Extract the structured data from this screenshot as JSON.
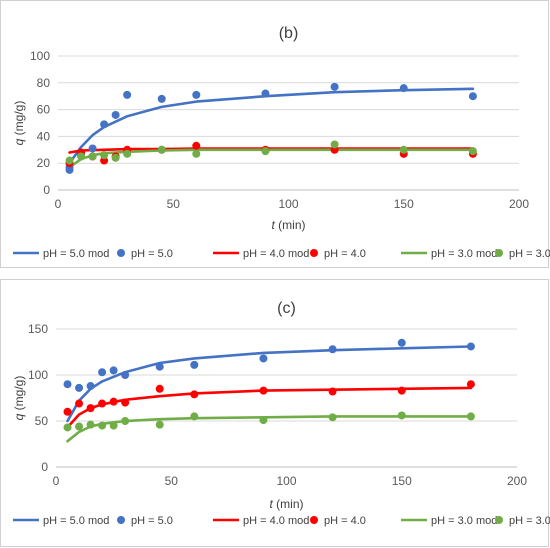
{
  "chart_data": [
    {
      "type": "scatter",
      "title": "(b)",
      "xlabel_var": "t",
      "xlabel_unit": " (min)",
      "ylabel_var": "q",
      "ylabel_unit": " (mg/g)",
      "xlim": [
        0,
        200
      ],
      "ylim": [
        0,
        100
      ],
      "xticks": [
        0,
        50,
        100,
        150,
        200
      ],
      "yticks": [
        0,
        20,
        40,
        60,
        80,
        100
      ],
      "grid": "horizontal",
      "legend_position": "bottom",
      "legend": [
        "pH = 5.0 mod",
        "pH = 5.0",
        "pH = 4.0 mod",
        "pH = 4.0",
        "pH = 3.0 mod",
        "pH = 3.0"
      ],
      "series": [
        {
          "name": "pH = 5.0 mod",
          "kind": "line",
          "color": "#4472C4",
          "x": [
            5,
            10,
            15,
            20,
            30,
            45,
            60,
            90,
            120,
            150,
            180
          ],
          "y": [
            20,
            32,
            41,
            47,
            55,
            62,
            66,
            70,
            73,
            74.5,
            75.5
          ]
        },
        {
          "name": "pH = 5.0",
          "kind": "markers",
          "color": "#4472C4",
          "x": [
            5,
            5,
            10,
            15,
            20,
            25,
            30,
            45,
            60,
            90,
            120,
            150,
            180
          ],
          "y": [
            15,
            17,
            26,
            31,
            49,
            56,
            71,
            68,
            71,
            72,
            77,
            76,
            70
          ]
        },
        {
          "name": "pH = 4.0 mod",
          "kind": "line",
          "color": "#FF0000",
          "x": [
            5,
            10,
            20,
            30,
            45,
            60,
            90,
            120,
            150,
            180
          ],
          "y": [
            28,
            29.5,
            30,
            30.5,
            30.5,
            31,
            31,
            31,
            31,
            31
          ]
        },
        {
          "name": "pH = 4.0",
          "kind": "markers",
          "color": "#FF0000",
          "x": [
            5,
            10,
            15,
            20,
            25,
            30,
            45,
            60,
            90,
            120,
            150,
            180
          ],
          "y": [
            20,
            28,
            25,
            22,
            25,
            30,
            30,
            33,
            30,
            30,
            27,
            27
          ]
        },
        {
          "name": "pH = 3.0 mod",
          "kind": "line",
          "color": "#70AD47",
          "x": [
            5,
            10,
            15,
            20,
            30,
            45,
            60,
            90,
            120,
            150,
            180
          ],
          "y": [
            17,
            23,
            26,
            27.5,
            28.5,
            29.5,
            30,
            30,
            30,
            30,
            30
          ]
        },
        {
          "name": "pH = 3.0",
          "kind": "markers",
          "color": "#70AD47",
          "x": [
            5,
            10,
            15,
            20,
            25,
            30,
            45,
            60,
            90,
            120,
            150,
            180
          ],
          "y": [
            22,
            25,
            25,
            26,
            24,
            27,
            30,
            27,
            29,
            34,
            30,
            29
          ]
        }
      ]
    },
    {
      "type": "scatter",
      "title": "(c)",
      "xlabel_var": "t",
      "xlabel_unit": " (min)",
      "ylabel_var": "q",
      "ylabel_unit": " (mg/g)",
      "xlim": [
        0,
        200
      ],
      "ylim": [
        0,
        150
      ],
      "xticks": [
        0,
        50,
        100,
        150,
        200
      ],
      "yticks": [
        0,
        50,
        100,
        150
      ],
      "grid": "horizontal",
      "legend_position": "bottom",
      "legend": [
        "pH = 5.0 mod",
        "pH = 5.0",
        "pH = 4.0 mod",
        "pH = 4.0",
        "pH = 3.0 mod",
        "pH = 3.0"
      ],
      "series": [
        {
          "name": "pH = 5.0 mod",
          "kind": "line",
          "color": "#4472C4",
          "x": [
            5,
            10,
            15,
            20,
            30,
            45,
            60,
            90,
            120,
            150,
            180
          ],
          "y": [
            50,
            72,
            85,
            93,
            103,
            113,
            118,
            124,
            127,
            129,
            131
          ]
        },
        {
          "name": "pH = 5.0",
          "kind": "markers",
          "color": "#4472C4",
          "x": [
            5,
            10,
            15,
            20,
            25,
            30,
            45,
            60,
            90,
            120,
            150,
            180
          ],
          "y": [
            90,
            86,
            88,
            103,
            105,
            100,
            109,
            111,
            118,
            128,
            135,
            131
          ]
        },
        {
          "name": "pH = 4.0 mod",
          "kind": "line",
          "color": "#FF0000",
          "x": [
            5,
            10,
            15,
            20,
            30,
            45,
            60,
            90,
            120,
            150,
            180
          ],
          "y": [
            43,
            57,
            64,
            68,
            73,
            77,
            80,
            83,
            84,
            85,
            86
          ]
        },
        {
          "name": "pH = 4.0",
          "kind": "markers",
          "color": "#FF0000",
          "x": [
            5,
            10,
            15,
            20,
            25,
            30,
            45,
            60,
            90,
            120,
            150,
            180
          ],
          "y": [
            60,
            69,
            64,
            69,
            71,
            70,
            85,
            79,
            83,
            82,
            83,
            90
          ]
        },
        {
          "name": "pH = 3.0 mod",
          "kind": "line",
          "color": "#70AD47",
          "x": [
            5,
            10,
            15,
            20,
            30,
            45,
            60,
            90,
            120,
            150,
            180
          ],
          "y": [
            28,
            38,
            44,
            47,
            50,
            52,
            53,
            54,
            55,
            55,
            55
          ]
        },
        {
          "name": "pH = 3.0",
          "kind": "markers",
          "color": "#70AD47",
          "x": [
            5,
            10,
            15,
            20,
            25,
            30,
            45,
            60,
            90,
            120,
            150,
            180
          ],
          "y": [
            43,
            44,
            46,
            45,
            45,
            50,
            46,
            55,
            51,
            54,
            56,
            55
          ]
        }
      ]
    }
  ]
}
